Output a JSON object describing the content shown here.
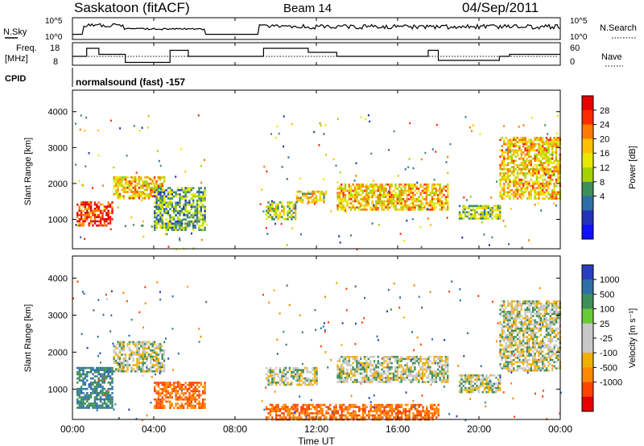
{
  "header": {
    "station": "Saskatoon (fitACF)",
    "beam": "Beam 14",
    "date": "04/Sep/2011"
  },
  "noise_panel": {
    "left_label": "N.Sky",
    "right_label": "N.Search",
    "left_ticks": [
      "10^5",
      "10^0"
    ],
    "right_ticks": [
      "10^5",
      "10^0"
    ]
  },
  "freq_panel": {
    "left_label_1": "Freq.",
    "left_label_2": "[MHz]",
    "right_label": "Nave",
    "left_ticks": [
      "18",
      "8"
    ],
    "right_ticks": [
      "60",
      "0"
    ]
  },
  "cpid": {
    "label": "CPID",
    "text": "normalsound (fast) -157"
  },
  "power_colorbar": {
    "title": "Power [dB]",
    "ticks": [
      "28",
      "24",
      "20",
      "16",
      "12",
      "8",
      "4"
    ],
    "colors": [
      "#e60000",
      "#ff2a00",
      "#ff7a00",
      "#ffc000",
      "#e8e800",
      "#a6d200",
      "#3f8f5a",
      "#2f6fa8",
      "#2233bb",
      "#1010ff"
    ]
  },
  "velocity_colorbar": {
    "title": "Velocity [m s⁻¹]",
    "ticks": [
      "1000",
      "500",
      "100",
      "25",
      "-25",
      "-100",
      "-500",
      "-1000"
    ],
    "colors": [
      "#2a3fc0",
      "#2f6fa8",
      "#3f8f5a",
      "#66cc33",
      "#c8c8c8",
      "#c8c8c8",
      "#f0b000",
      "#ff8800",
      "#ff4400",
      "#e60000"
    ]
  },
  "x_axis": {
    "label": "Time UT",
    "ticks": [
      "00:00",
      "04:00",
      "08:00",
      "12:00",
      "16:00",
      "20:00",
      "00:00"
    ]
  },
  "chart_data": [
    {
      "type": "heatmap",
      "title": "Power",
      "ylabel": "Slant Range [km]",
      "xlabel": "",
      "xlim_hours": [
        0,
        24
      ],
      "ylim": [
        180,
        4600
      ],
      "yticks": [
        1000,
        2000,
        3000,
        4000
      ],
      "colorbar": "Power [dB]",
      "gap_hours": [
        6.6,
        9.2
      ],
      "bands": [
        {
          "x": [
            0.2,
            2.0
          ],
          "y": [
            800,
            1500
          ],
          "db": 28
        },
        {
          "x": [
            2.0,
            4.5
          ],
          "y": [
            1600,
            2200
          ],
          "db": 20
        },
        {
          "x": [
            4.0,
            6.5
          ],
          "y": [
            700,
            1900
          ],
          "db": 12
        },
        {
          "x": [
            9.5,
            11.0
          ],
          "y": [
            1000,
            1500
          ],
          "db": 16
        },
        {
          "x": [
            11.0,
            12.5
          ],
          "y": [
            1500,
            1800
          ],
          "db": 18
        },
        {
          "x": [
            13.0,
            18.5
          ],
          "y": [
            1250,
            2000
          ],
          "db": 20
        },
        {
          "x": [
            19.0,
            21.0
          ],
          "y": [
            1000,
            1400
          ],
          "db": 14
        },
        {
          "x": [
            21.0,
            24.0
          ],
          "y": [
            1600,
            3300
          ],
          "db": 20
        }
      ]
    },
    {
      "type": "heatmap",
      "title": "Velocity",
      "ylabel": "Slant Range [km]",
      "xlabel": "Time UT",
      "xlim_hours": [
        0,
        24
      ],
      "ylim": [
        180,
        4600
      ],
      "yticks": [
        1000,
        2000,
        3000,
        4000
      ],
      "colorbar": "Velocity [m s-1]",
      "gap_hours": [
        6.6,
        9.2
      ],
      "bands": [
        {
          "x": [
            0.2,
            2.0
          ],
          "y": [
            500,
            1600
          ],
          "v": 100
        },
        {
          "x": [
            2.0,
            4.5
          ],
          "y": [
            1500,
            2300
          ],
          "v": 0
        },
        {
          "x": [
            4.0,
            6.5
          ],
          "y": [
            500,
            1200
          ],
          "v": -500
        },
        {
          "x": [
            9.5,
            12.0
          ],
          "y": [
            1100,
            1600
          ],
          "v": 0
        },
        {
          "x": [
            9.5,
            18.0
          ],
          "y": [
            200,
            600
          ],
          "v": -500
        },
        {
          "x": [
            13.0,
            18.5
          ],
          "y": [
            1200,
            1900
          ],
          "v": 0
        },
        {
          "x": [
            19.0,
            21.0
          ],
          "y": [
            900,
            1400
          ],
          "v": 0
        },
        {
          "x": [
            21.0,
            24.0
          ],
          "y": [
            1500,
            3400
          ],
          "v": 0
        }
      ]
    }
  ]
}
